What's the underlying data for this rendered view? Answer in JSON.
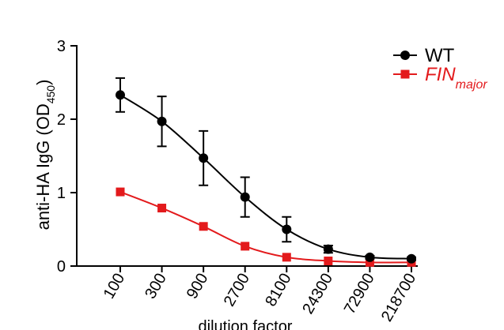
{
  "chart_data": {
    "type": "line",
    "x": [
      100,
      300,
      900,
      2700,
      8100,
      24300,
      72900,
      218700
    ],
    "x_tick_labels": [
      "100",
      "300",
      "900",
      "2700",
      "8100",
      "24300",
      "72900",
      "218700"
    ],
    "xlabel": "dilution factor",
    "ylabel": "anti-HA IgG (OD",
    "ylabel_sub": "450",
    "ylabel_close": ")",
    "ylim": [
      0,
      3
    ],
    "y_ticks": [
      0,
      1,
      2,
      3
    ],
    "y_tick_labels": [
      "0",
      "1",
      "2",
      "3"
    ],
    "x_scale": "log",
    "grid": false,
    "legend_position": "top-right",
    "series": [
      {
        "name": "WT",
        "color": "#000000",
        "marker": "circle",
        "values": [
          2.33,
          1.97,
          1.47,
          0.94,
          0.5,
          0.23,
          0.12,
          0.1
        ],
        "error": [
          0.23,
          0.34,
          0.37,
          0.27,
          0.17,
          0.05,
          0.02,
          0.02
        ]
      },
      {
        "name": "FIN",
        "name_sub": "major",
        "name_style": "italic",
        "color": "#e31a1c",
        "marker": "square",
        "values": [
          1.01,
          0.79,
          0.54,
          0.27,
          0.12,
          0.07,
          0.05,
          0.05
        ],
        "error": [
          0,
          0,
          0,
          0,
          0,
          0,
          0,
          0
        ]
      }
    ]
  }
}
